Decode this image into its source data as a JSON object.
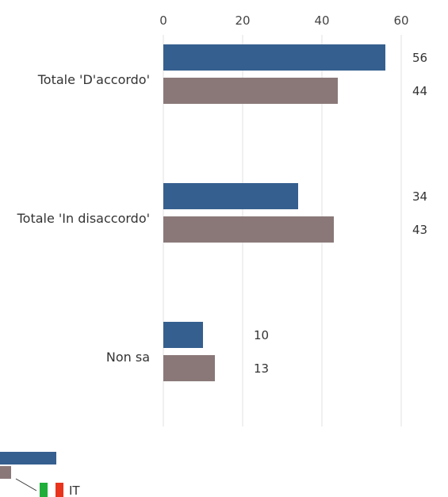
{
  "chart_data": {
    "type": "bar",
    "orientation": "horizontal",
    "categories": [
      "Totale 'D'accordo'",
      "Totale 'In disaccordo'",
      "Non sa"
    ],
    "series": [
      {
        "values": [
          56,
          34,
          10
        ],
        "color": "#355f8f"
      },
      {
        "name": "IT",
        "values": [
          44,
          43,
          13
        ],
        "color": "#8a7878"
      }
    ],
    "xlim": [
      0,
      60
    ],
    "xticks": [
      0,
      20,
      40,
      60
    ],
    "grid": true,
    "legend": "bottom-left",
    "legend_flag": "italy-flag-icon"
  }
}
